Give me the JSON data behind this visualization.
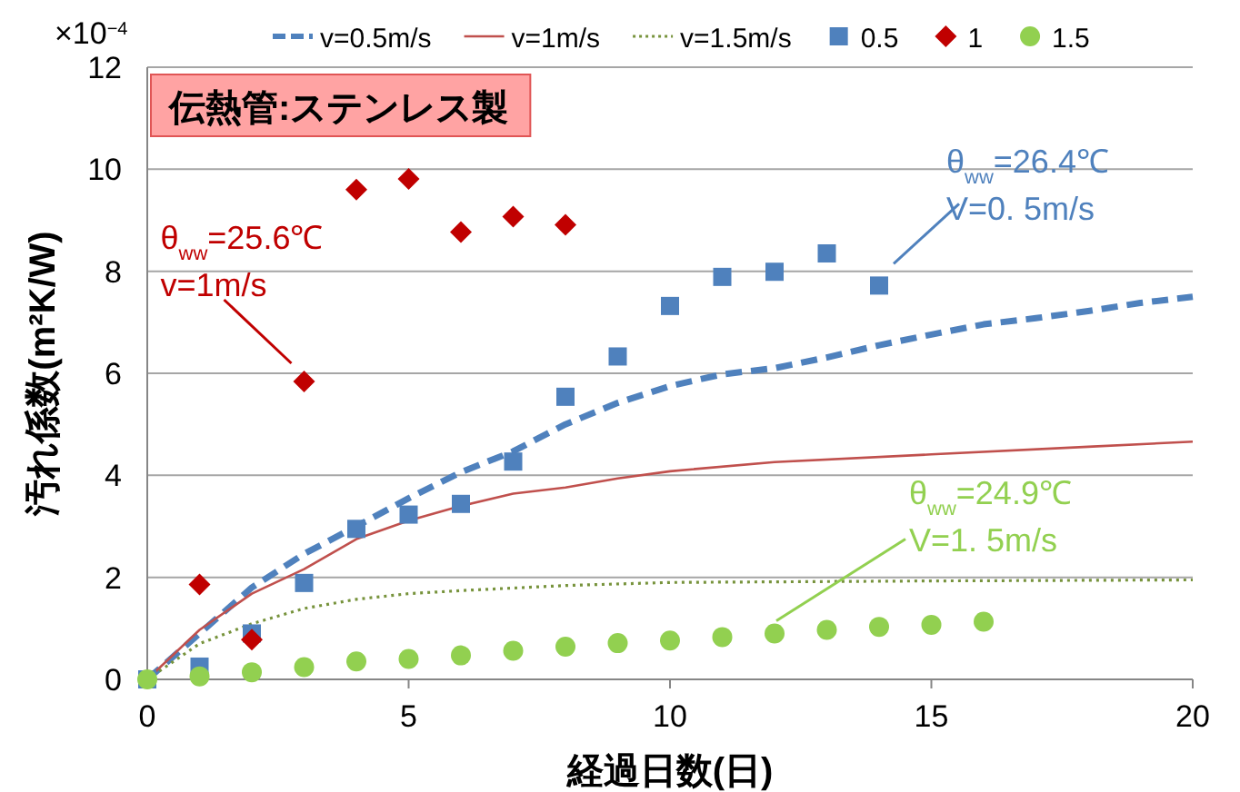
{
  "chart_data": {
    "type": "scatter",
    "title": "伝熱管:ステンレス製",
    "xlabel": "経過日数(日)",
    "ylabel": "汚れ係数(m²K/W)",
    "xlim": [
      0,
      20
    ],
    "xticks": [
      0,
      5,
      10,
      15,
      20
    ],
    "ylim": [
      0,
      12
    ],
    "yticks": [
      0,
      2,
      4,
      6,
      8,
      10,
      12
    ],
    "grid": "y",
    "legend": "top",
    "series": [
      {
        "name": "v=0.5m/s",
        "type": "line",
        "line_style": "dashed",
        "marker": "none",
        "color": "#4f81bd",
        "x": [
          0,
          1,
          2,
          3,
          4,
          5,
          6,
          7,
          8,
          9,
          10,
          11,
          12,
          13,
          14,
          15,
          16,
          17,
          18,
          19,
          20
        ],
        "values": [
          0,
          0.9,
          1.8,
          2.46,
          3.0,
          3.55,
          4.06,
          4.47,
          5.0,
          5.42,
          5.75,
          5.98,
          6.1,
          6.31,
          6.55,
          6.76,
          6.96,
          7.08,
          7.22,
          7.38,
          7.5
        ]
      },
      {
        "name": "v=1m/s",
        "type": "line",
        "line_style": "solid",
        "marker": "none",
        "color": "#c0504d",
        "x": [
          0,
          1,
          2,
          3,
          4,
          5,
          6,
          7,
          8,
          9,
          10,
          12,
          15,
          18,
          20
        ],
        "values": [
          0,
          0.97,
          1.68,
          2.16,
          2.75,
          3.11,
          3.4,
          3.64,
          3.76,
          3.94,
          4.08,
          4.26,
          4.41,
          4.56,
          4.66
        ]
      },
      {
        "name": "v=1.5m/s",
        "type": "line",
        "line_style": "dotted",
        "marker": "none",
        "color": "#77933c",
        "x": [
          0,
          1,
          2,
          3,
          4,
          5,
          6,
          8,
          10,
          15,
          20
        ],
        "values": [
          0,
          0.7,
          1.09,
          1.39,
          1.57,
          1.68,
          1.74,
          1.84,
          1.9,
          1.93,
          1.95
        ]
      },
      {
        "name": "0.5",
        "marker": "square",
        "color": "#4f81bd",
        "x": [
          0,
          1,
          2,
          3,
          4,
          5,
          6,
          7,
          8,
          9,
          10,
          11,
          12,
          13,
          14
        ],
        "values": [
          0,
          0.25,
          0.9,
          1.89,
          2.95,
          3.23,
          3.44,
          4.27,
          5.54,
          6.33,
          7.32,
          7.89,
          7.99,
          8.35,
          7.72
        ]
      },
      {
        "name": "1",
        "marker": "diamond",
        "color": "#c00000",
        "x": [
          1,
          2,
          3,
          4,
          5,
          6,
          7,
          8
        ],
        "values": [
          1.86,
          0.78,
          5.84,
          9.6,
          9.81,
          8.77,
          9.07,
          8.91
        ]
      },
      {
        "name": "1.5",
        "marker": "circle",
        "color": "#92d050",
        "x": [
          0,
          1,
          2,
          3,
          4,
          5,
          6,
          7,
          8,
          9,
          10,
          11,
          12,
          13,
          14,
          15,
          16
        ],
        "values": [
          0,
          0.06,
          0.14,
          0.24,
          0.35,
          0.4,
          0.47,
          0.56,
          0.64,
          0.71,
          0.76,
          0.83,
          0.9,
          0.97,
          1.03,
          1.07,
          1.13
        ]
      }
    ],
    "annotations": [
      "×10$^{−4}$",
      {
        "text": "θ$_{ww}$=25.6℃\nv=1m/s",
        "x": 3,
        "y": 5.84
      },
      {
        "text": "θ$_{ww}$=26.4℃\nV=0. 5m/s",
        "x": 14,
        "y": 7.72
      },
      {
        "text": "θ$_{ww}$=24.9℃\nV=1. 5m/s",
        "x": 12,
        "y": 0.9
      }
    ]
  }
}
